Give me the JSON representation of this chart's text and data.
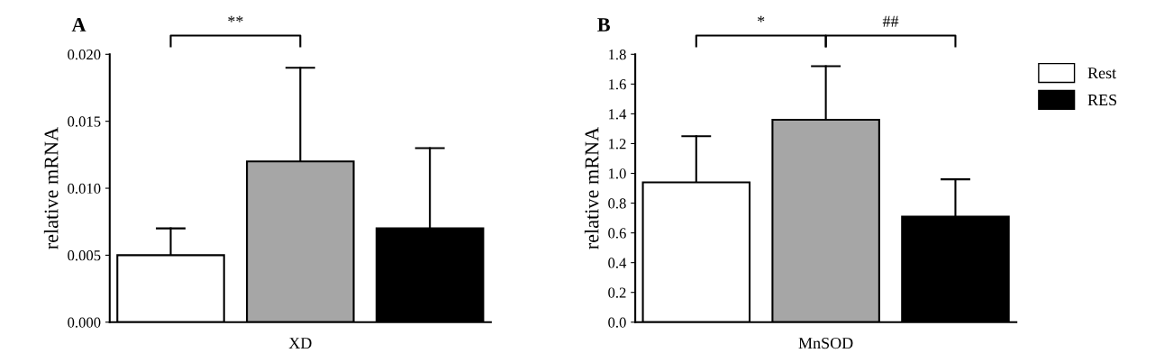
{
  "chart_data": [
    {
      "type": "bar",
      "title": "A",
      "ylabel": "relative mRNA",
      "categories": [
        "XD"
      ],
      "series": [
        {
          "color": "#ffffff",
          "values": [
            0.005
          ],
          "errors": [
            [
              0.005,
              0.007
            ]
          ]
        },
        {
          "color": "#a6a6a6",
          "values": [
            0.012
          ],
          "errors": [
            [
              0.012,
              0.019
            ]
          ]
        },
        {
          "color": "#000000",
          "values": [
            0.007
          ],
          "errors": [
            [
              0.007,
              0.013
            ]
          ]
        }
      ],
      "ylim": [
        0,
        0.02
      ],
      "yticks": [
        {
          "value": 0,
          "label": "0.000"
        },
        {
          "value": 0.005,
          "label": "0.005"
        },
        {
          "value": 0.01,
          "label": "0.010"
        },
        {
          "value": 0.015,
          "label": "0.015"
        },
        {
          "value": 0.02,
          "label": "0.020"
        }
      ],
      "annotations": [
        "**"
      ],
      "grid": false,
      "legend": false
    },
    {
      "type": "bar",
      "title": "B",
      "ylabel": "relative mRNA",
      "categories": [
        "MnSOD"
      ],
      "series": [
        {
          "name": "Rest",
          "color": "#ffffff",
          "values": [
            0.94
          ],
          "errors": [
            [
              0.94,
              1.25
            ]
          ]
        },
        {
          "color": "#a6a6a6",
          "values": [
            1.36
          ],
          "errors": [
            [
              1.36,
              1.72
            ]
          ]
        },
        {
          "name": "RES",
          "color": "#000000",
          "values": [
            0.71
          ],
          "errors": [
            [
              0.71,
              0.96
            ]
          ]
        }
      ],
      "ylim": [
        0,
        1.8
      ],
      "yticks": [
        {
          "value": 0,
          "label": "0.0"
        },
        {
          "value": 0.2,
          "label": "0.2"
        },
        {
          "value": 0.4,
          "label": "0.4"
        },
        {
          "value": 0.6,
          "label": "0.6"
        },
        {
          "value": 0.8,
          "label": "0.8"
        },
        {
          "value": 1.0,
          "label": "1.0"
        },
        {
          "value": 1.2,
          "label": "1.2"
        },
        {
          "value": 1.4,
          "label": "1.4"
        },
        {
          "value": 1.6,
          "label": "1.6"
        },
        {
          "value": 1.8,
          "label": "1.8"
        }
      ],
      "annotations": [
        "*",
        "##"
      ],
      "grid": false,
      "legend": "right"
    }
  ]
}
